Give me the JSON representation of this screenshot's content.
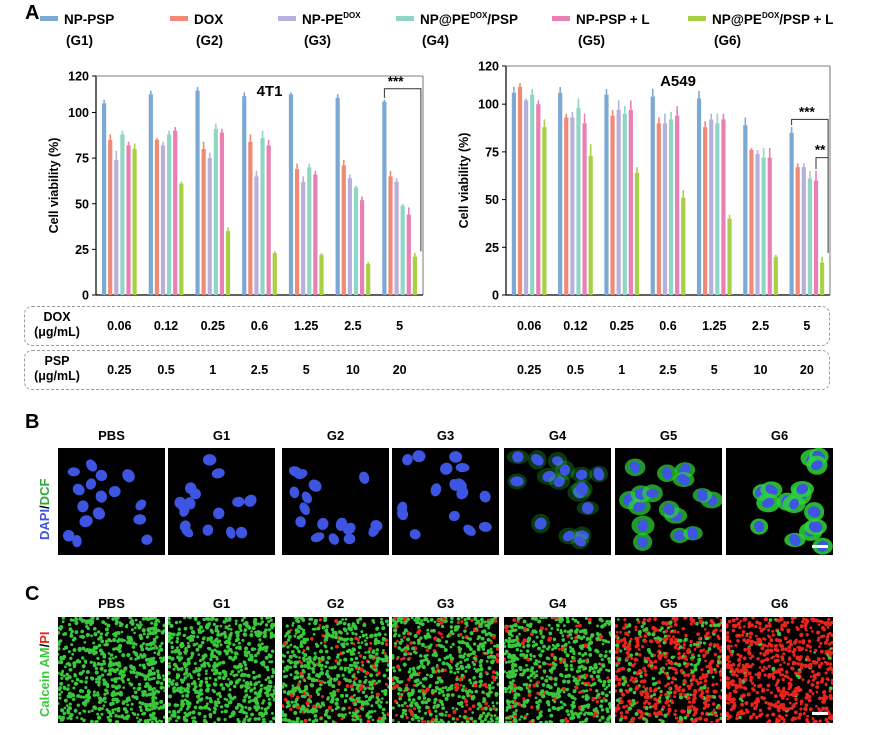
{
  "panels": {
    "a": "A",
    "b": "B",
    "c": "C"
  },
  "legend": [
    {
      "name": "NP-PSP",
      "sub": "",
      "group": "(G1)",
      "color": "#7ba9d3"
    },
    {
      "name": "DOX",
      "sub": "",
      "group": "(G2)",
      "color": "#f08a76"
    },
    {
      "name": "NP-PE",
      "sub": "DOX",
      "group": "(G3)",
      "color": "#b8b0dc"
    },
    {
      "name": "NP@PE",
      "sub": "DOX",
      "name2": "/PSP",
      "group": "(G4)",
      "color": "#8fd6c6"
    },
    {
      "name": "NP-PSP + L",
      "sub": "",
      "group": "(G5)",
      "color": "#ea7fb3"
    },
    {
      "name": "NP@PE",
      "sub": "DOX",
      "name2": "/PSP + L",
      "group": "(G6)",
      "color": "#a8d045"
    }
  ],
  "chart_data": [
    {
      "type": "bar",
      "title": "4T1",
      "ylabel": "Cell viability (%)",
      "ylim": [
        0,
        120
      ],
      "yticks": [
        0,
        25,
        50,
        75,
        100,
        120
      ],
      "categories": [
        "0.06/0.25",
        "0.12/0.5",
        "0.25/1",
        "0.6/2.5",
        "1.25/5",
        "2.5/10",
        "5/20"
      ],
      "series": [
        {
          "name": "G1",
          "values": [
            105,
            110,
            112,
            109,
            110,
            108,
            106
          ],
          "errors": [
            2,
            2,
            2,
            2,
            1,
            2,
            1
          ]
        },
        {
          "name": "G2",
          "values": [
            85,
            85,
            80,
            84,
            69,
            71,
            65
          ],
          "errors": [
            3,
            1,
            4,
            4,
            3,
            3,
            3
          ]
        },
        {
          "name": "G3",
          "values": [
            74,
            82,
            75,
            65,
            62,
            64,
            62
          ],
          "errors": [
            5,
            2,
            3,
            3,
            3,
            2,
            2
          ]
        },
        {
          "name": "G4",
          "values": [
            88,
            88,
            91,
            86,
            70,
            59,
            49
          ],
          "errors": [
            2,
            2,
            3,
            4,
            2,
            1,
            1
          ]
        },
        {
          "name": "G5",
          "values": [
            82,
            90,
            89,
            82,
            66,
            52,
            44
          ],
          "errors": [
            2,
            2,
            2,
            3,
            2,
            2,
            4
          ]
        },
        {
          "name": "G6",
          "values": [
            80,
            61,
            35,
            23,
            22,
            17,
            21
          ],
          "errors": [
            3,
            1,
            2,
            1,
            1,
            1,
            2
          ]
        }
      ],
      "significance": [
        {
          "label": "***"
        }
      ]
    },
    {
      "type": "bar",
      "title": "A549",
      "ylabel": "Cell viability (%)",
      "ylim": [
        0,
        120
      ],
      "yticks": [
        0,
        25,
        50,
        75,
        100,
        120
      ],
      "categories": [
        "0.06/0.25",
        "0.12/0.5",
        "0.25/1",
        "0.6/2.5",
        "1.25/5",
        "2.5/10",
        "5/20"
      ],
      "series": [
        {
          "name": "G1",
          "values": [
            106,
            106,
            105,
            104,
            103,
            89,
            85
          ],
          "errors": [
            3,
            3,
            3,
            4,
            4,
            4,
            3
          ]
        },
        {
          "name": "G2",
          "values": [
            109,
            93,
            94,
            90,
            88,
            76,
            67
          ],
          "errors": [
            2,
            2,
            3,
            3,
            3,
            1,
            2
          ]
        },
        {
          "name": "G3",
          "values": [
            102,
            93,
            97,
            90,
            92,
            74,
            67
          ],
          "errors": [
            1,
            3,
            5,
            5,
            3,
            2,
            2
          ]
        },
        {
          "name": "G4",
          "values": [
            105,
            98,
            95,
            92,
            90,
            72,
            61
          ],
          "errors": [
            3,
            5,
            4,
            4,
            5,
            5,
            4
          ]
        },
        {
          "name": "G5",
          "values": [
            100,
            90,
            97,
            94,
            92,
            72,
            60
          ],
          "errors": [
            2,
            5,
            5,
            5,
            3,
            5,
            5
          ]
        },
        {
          "name": "G6",
          "values": [
            88,
            73,
            64,
            51,
            40,
            20,
            17
          ],
          "errors": [
            4,
            6,
            3,
            4,
            2,
            1,
            3
          ]
        }
      ],
      "significance": [
        {
          "label": "***"
        },
        {
          "label": "**"
        }
      ]
    }
  ],
  "dose_table": {
    "dox_label": "DOX",
    "dox_unit": "(μg/mL)",
    "dox_values": [
      "0.06",
      "0.12",
      "0.25",
      "0.6",
      "1.25",
      "2.5",
      "5"
    ],
    "psp_label": "PSP",
    "psp_unit": "(μg/mL)",
    "psp_values": [
      "0.25",
      "0.5",
      "1",
      "2.5",
      "5",
      "10",
      "20"
    ]
  },
  "panel_b": {
    "label_dapi": "DAPI",
    "label_sep": "/",
    "label_dcf": "DCF",
    "columns": [
      "PBS",
      "G1",
      "G2",
      "G3",
      "G4",
      "G5",
      "G6"
    ],
    "colors": {
      "nucleus": "#3d55e0",
      "dcf": "#2ed23a"
    },
    "dcf_intensity": [
      0.1,
      0.1,
      0.05,
      0.05,
      0.3,
      0.8,
      0.95
    ]
  },
  "panel_c": {
    "label_calcein": "Calcein AM",
    "label_sep": "/",
    "label_pi": "PI",
    "columns": [
      "PBS",
      "G1",
      "G2",
      "G3",
      "G4",
      "G5",
      "G6"
    ],
    "colors": {
      "live": "#39c83c",
      "dead": "#e8241c"
    },
    "dead_fraction": [
      0.0,
      0.0,
      0.15,
      0.2,
      0.15,
      0.7,
      0.95
    ]
  }
}
